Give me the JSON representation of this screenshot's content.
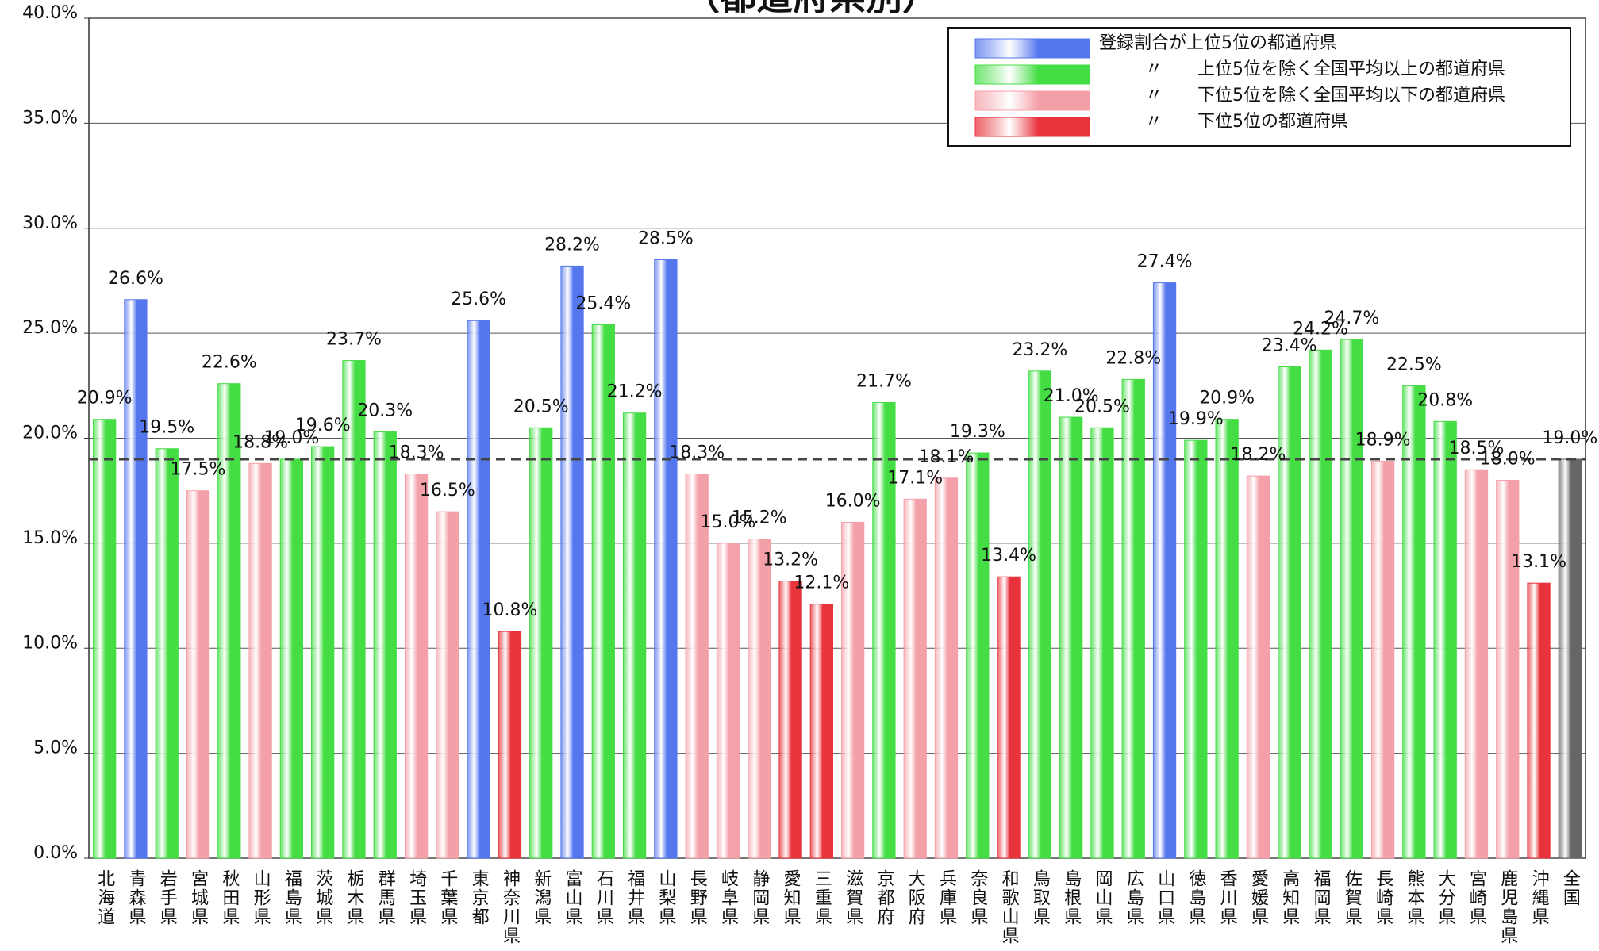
{
  "chart_data": {
    "type": "bar",
    "title": "（都道府県別）",
    "categories": [
      "北海道",
      "青森県",
      "岩手県",
      "宮城県",
      "秋田県",
      "山形県",
      "福島県",
      "茨城県",
      "栃木県",
      "群馬県",
      "埼玉県",
      "千葉県",
      "東京都",
      "神奈川県",
      "新潟県",
      "富山県",
      "石川県",
      "福井県",
      "山梨県",
      "長野県",
      "岐阜県",
      "静岡県",
      "愛知県",
      "三重県",
      "滋賀県",
      "京都府",
      "大阪府",
      "兵庫県",
      "奈良県",
      "和歌山県",
      "鳥取県",
      "島根県",
      "岡山県",
      "広島県",
      "山口県",
      "徳島県",
      "香川県",
      "愛媛県",
      "高知県",
      "福岡県",
      "佐賀県",
      "長崎県",
      "熊本県",
      "大分県",
      "宮崎県",
      "鹿児島県",
      "沖縄県",
      "全国"
    ],
    "values": [
      20.9,
      26.6,
      19.5,
      17.5,
      22.6,
      18.8,
      19.0,
      19.6,
      23.7,
      20.3,
      18.3,
      16.5,
      25.6,
      10.8,
      20.5,
      28.2,
      25.4,
      21.2,
      28.5,
      18.3,
      15.0,
      15.2,
      13.2,
      12.1,
      16.0,
      21.7,
      17.1,
      18.1,
      19.3,
      13.4,
      23.2,
      21.0,
      20.5,
      22.8,
      27.4,
      19.9,
      20.9,
      18.2,
      23.4,
      24.2,
      24.7,
      18.9,
      22.5,
      20.8,
      18.5,
      18.0,
      13.1,
      19.0
    ],
    "value_labels": [
      "20.9%",
      "26.6%",
      "19.5%",
      "17.5%",
      "22.6%",
      "18.8%",
      "19.0%",
      "19.6%",
      "23.7%",
      "20.3%",
      "18.3%",
      "16.5%",
      "25.6%",
      "10.8%",
      "20.5%",
      "28.2%",
      "25.4%",
      "21.2%",
      "28.5%",
      "18.3%",
      "15.0%",
      "15.2%",
      "13.2%",
      "12.1%",
      "16.0%",
      "21.7%",
      "17.1%",
      "18.1%",
      "19.3%",
      "13.4%",
      "23.2%",
      "21.0%",
      "20.5%",
      "22.8%",
      "27.4%",
      "19.9%",
      "20.9%",
      "18.2%",
      "23.4%",
      "24.2%",
      "24.7%",
      "18.9%",
      "22.5%",
      "20.8%",
      "18.5%",
      "18.0%",
      "13.1%",
      "19.0%"
    ],
    "colors": [
      "#44dd44",
      "#5577ee",
      "#44dd44",
      "#f4a0a8",
      "#44dd44",
      "#f4a0a8",
      "#44dd44",
      "#44dd44",
      "#44dd44",
      "#44dd44",
      "#f4a0a8",
      "#f4a0a8",
      "#5577ee",
      "#e8323c",
      "#44dd44",
      "#5577ee",
      "#44dd44",
      "#44dd44",
      "#5577ee",
      "#f4a0a8",
      "#f4a0a8",
      "#f4a0a8",
      "#e8323c",
      "#e8323c",
      "#f4a0a8",
      "#44dd44",
      "#f4a0a8",
      "#f4a0a8",
      "#44dd44",
      "#e8323c",
      "#44dd44",
      "#44dd44",
      "#44dd44",
      "#44dd44",
      "#5577ee",
      "#44dd44",
      "#44dd44",
      "#f4a0a8",
      "#44dd44",
      "#44dd44",
      "#44dd44",
      "#f4a0a8",
      "#44dd44",
      "#44dd44",
      "#f4a0a8",
      "#f4a0a8",
      "#e8323c",
      "#666666"
    ],
    "legend": [
      {
        "name": "登録割合が上位5位の都道府県",
        "color": "#5577ee"
      },
      {
        "name": "〃　　上位5位を除く全国平均以上の都道府県",
        "color": "#44dd44"
      },
      {
        "name": "〃　　下位5位を除く全国平均以下の都道府県",
        "color": "#f4a0a8"
      },
      {
        "name": "〃　　下位5位の都道府県",
        "color": "#e8323c"
      }
    ],
    "ylim": [
      0,
      40
    ],
    "yticks": [
      {
        "value": 0,
        "label": "0.0%"
      },
      {
        "value": 5,
        "label": "5.0%"
      },
      {
        "value": 10,
        "label": "10.0%"
      },
      {
        "value": 15,
        "label": "15.0%"
      },
      {
        "value": 20,
        "label": "20.0%"
      },
      {
        "value": 25,
        "label": "25.0%"
      },
      {
        "value": 30,
        "label": "30.0%"
      },
      {
        "value": 35,
        "label": "35.0%"
      },
      {
        "value": 40,
        "label": "40.0%"
      }
    ],
    "grid": true
  }
}
